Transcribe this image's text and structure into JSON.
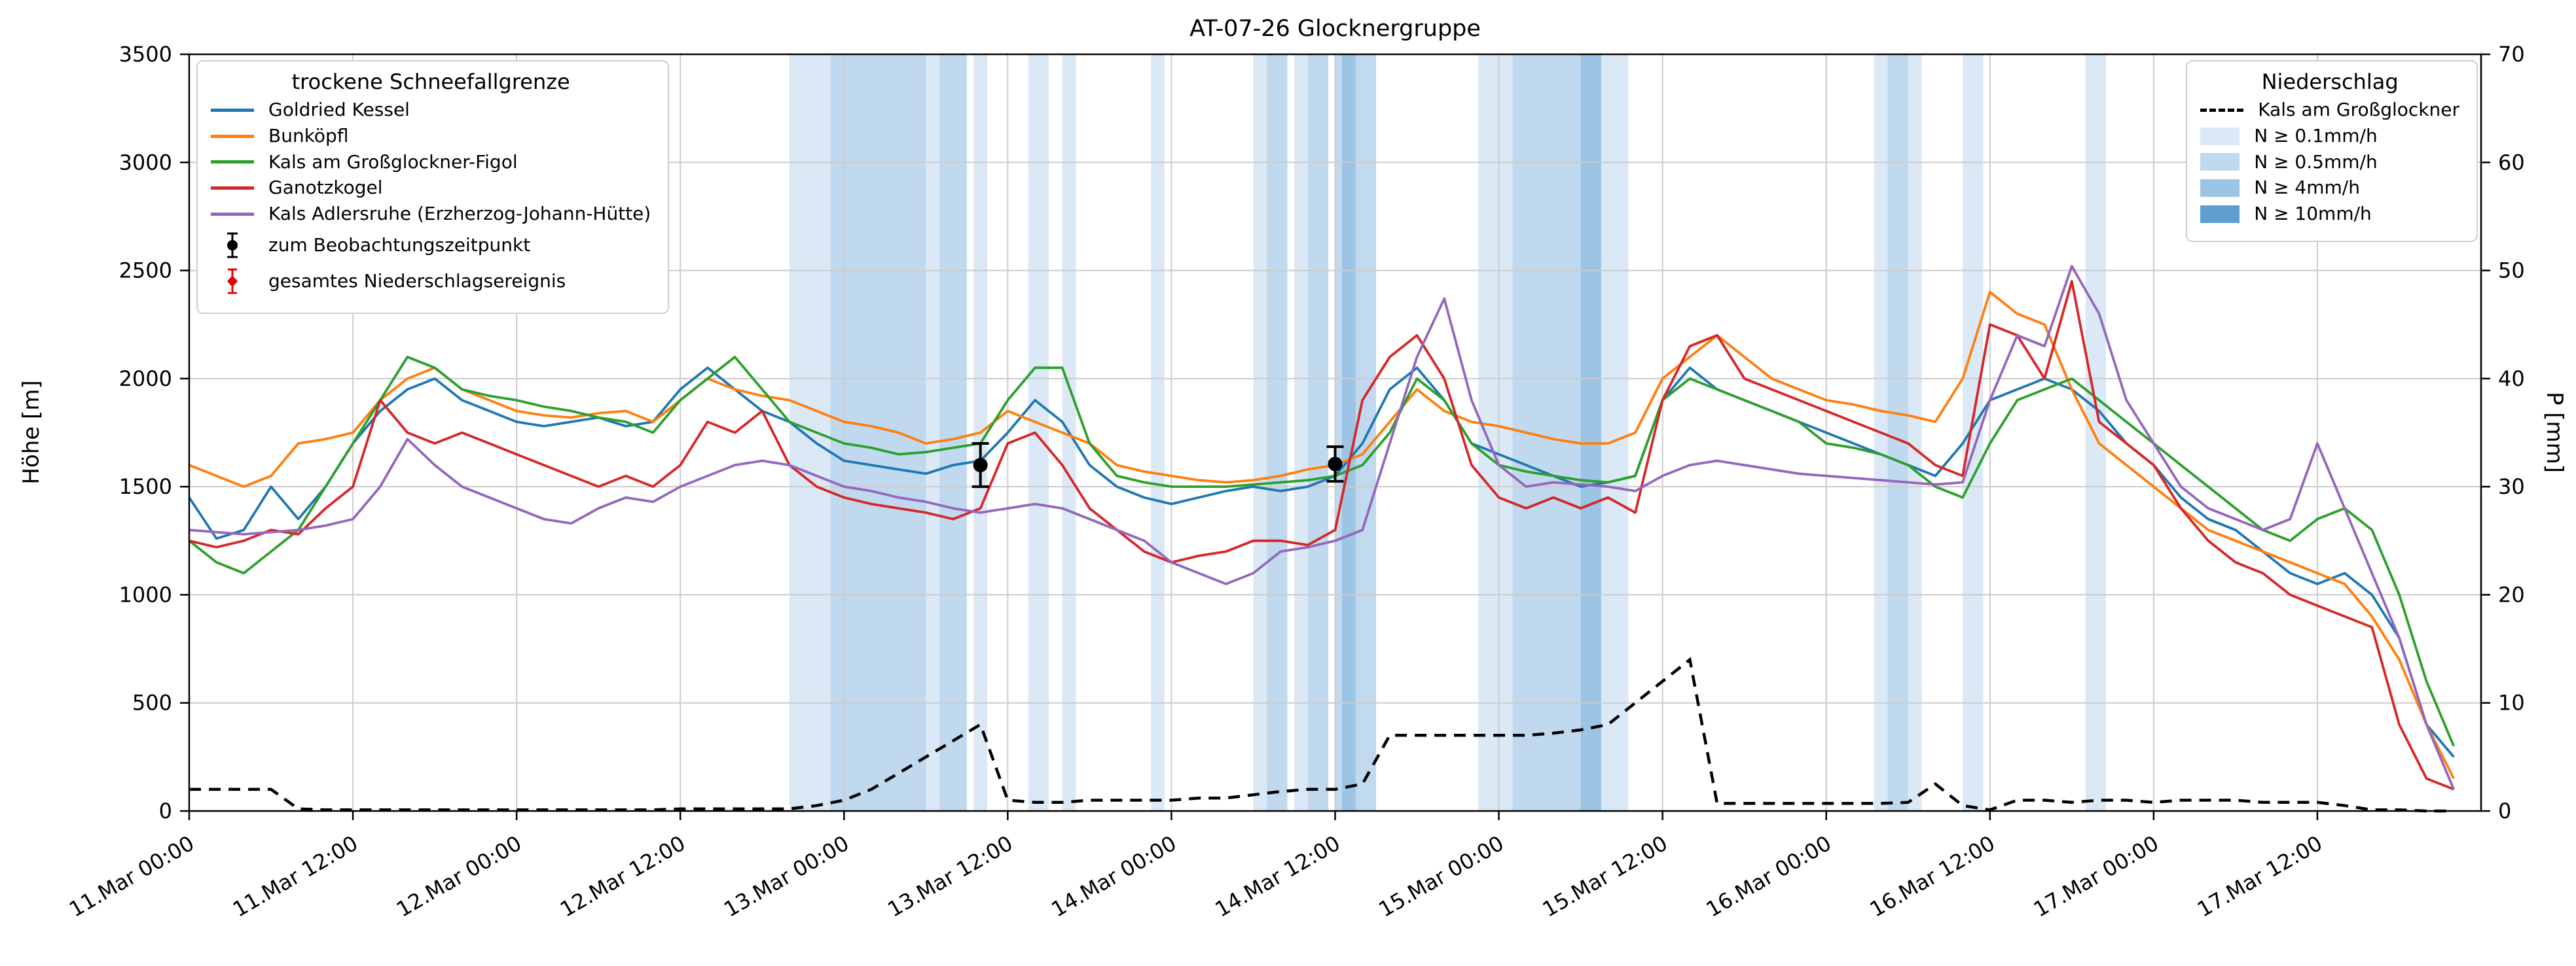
{
  "legend_snow": {
    "title": "trockene Schneefallgrenze"
  },
  "legend_precip": {
    "title": "Niederschlag"
  },
  "chart_data": {
    "type": "line",
    "title": "AT-07-26 Glocknergruppe",
    "ylabel_left": "Höhe [m]",
    "ylabel_right": "P [mm]",
    "ylim_left": [
      0,
      3500
    ],
    "ylim_right": [
      0,
      70
    ],
    "yticks_left": [
      0,
      500,
      1000,
      1500,
      2000,
      2500,
      3000,
      3500
    ],
    "yticks_right": [
      0,
      10,
      20,
      30,
      40,
      50,
      60,
      70
    ],
    "grid": true,
    "x_unit": "hours since 11.Mar 00:00",
    "x_max": 168,
    "x_ticks": [
      {
        "h": 0,
        "label": "11.Mar 00:00"
      },
      {
        "h": 12,
        "label": "11.Mar 12:00"
      },
      {
        "h": 24,
        "label": "12.Mar 00:00"
      },
      {
        "h": 36,
        "label": "12.Mar 12:00"
      },
      {
        "h": 48,
        "label": "13.Mar 00:00"
      },
      {
        "h": 60,
        "label": "13.Mar 12:00"
      },
      {
        "h": 72,
        "label": "14.Mar 00:00"
      },
      {
        "h": 84,
        "label": "14.Mar 12:00"
      },
      {
        "h": 96,
        "label": "15.Mar 00:00"
      },
      {
        "h": 108,
        "label": "15.Mar 12:00"
      },
      {
        "h": 120,
        "label": "16.Mar 00:00"
      },
      {
        "h": 132,
        "label": "16.Mar 12:00"
      },
      {
        "h": 144,
        "label": "17.Mar 00:00"
      },
      {
        "h": 156,
        "label": "17.Mar 12:00"
      }
    ],
    "x": [
      0,
      2,
      4,
      6,
      8,
      10,
      12,
      14,
      16,
      18,
      20,
      22,
      24,
      26,
      28,
      30,
      32,
      34,
      36,
      38,
      40,
      42,
      44,
      46,
      48,
      50,
      52,
      54,
      56,
      58,
      60,
      62,
      64,
      66,
      68,
      70,
      72,
      74,
      76,
      78,
      80,
      82,
      84,
      86,
      88,
      90,
      92,
      94,
      96,
      98,
      100,
      102,
      104,
      106,
      108,
      110,
      112,
      114,
      116,
      118,
      120,
      122,
      124,
      126,
      128,
      130,
      132,
      134,
      136,
      138,
      140,
      142,
      144,
      146,
      148,
      150,
      152,
      154,
      156,
      158,
      160,
      162,
      164,
      166
    ],
    "series": [
      {
        "name": "Goldried Kessel",
        "color": "#1f77b4",
        "values": [
          1450,
          1260,
          1300,
          1500,
          1350,
          1500,
          1700,
          1850,
          1950,
          2000,
          1900,
          1850,
          1800,
          1780,
          1800,
          1820,
          1780,
          1800,
          1950,
          2050,
          1950,
          1850,
          1800,
          1700,
          1620,
          1600,
          1580,
          1560,
          1600,
          1620,
          1750,
          1900,
          1800,
          1600,
          1500,
          1450,
          1420,
          1450,
          1480,
          1500,
          1480,
          1500,
          1550,
          1700,
          1950,
          2050,
          1900,
          1700,
          1650,
          1600,
          1550,
          1500,
          1520,
          1550,
          1900,
          2050,
          1950,
          1900,
          1850,
          1800,
          1750,
          1700,
          1650,
          1600,
          1550,
          1700,
          1900,
          1950,
          2000,
          1950,
          1850,
          1700,
          1600,
          1450,
          1350,
          1300,
          1200,
          1100,
          1050,
          1100,
          1000,
          800,
          400,
          250
        ]
      },
      {
        "name": "Bunköpfl",
        "color": "#ff7f0e",
        "values": [
          1600,
          1550,
          1500,
          1550,
          1700,
          1720,
          1750,
          1900,
          2000,
          2050,
          1950,
          1900,
          1850,
          1830,
          1820,
          1840,
          1850,
          1800,
          1900,
          2000,
          1950,
          1920,
          1900,
          1850,
          1800,
          1780,
          1750,
          1700,
          1720,
          1750,
          1850,
          1800,
          1750,
          1700,
          1600,
          1570,
          1550,
          1530,
          1520,
          1530,
          1550,
          1580,
          1600,
          1650,
          1800,
          1950,
          1850,
          1800,
          1780,
          1750,
          1720,
          1700,
          1700,
          1750,
          2000,
          2100,
          2200,
          2100,
          2000,
          1950,
          1900,
          1880,
          1850,
          1830,
          1800,
          2000,
          2400,
          2300,
          2250,
          1950,
          1700,
          1600,
          1500,
          1400,
          1300,
          1250,
          1200,
          1150,
          1100,
          1050,
          900,
          700,
          400,
          150
        ]
      },
      {
        "name": "Kals am Großglockner-Figol",
        "color": "#2ca02c",
        "values": [
          1250,
          1150,
          1100,
          1200,
          1300,
          1500,
          1700,
          1900,
          2100,
          2050,
          1950,
          1920,
          1900,
          1870,
          1850,
          1820,
          1800,
          1750,
          1900,
          2000,
          2100,
          1950,
          1800,
          1750,
          1700,
          1680,
          1650,
          1660,
          1680,
          1700,
          1900,
          2050,
          2050,
          1700,
          1550,
          1520,
          1500,
          1500,
          1500,
          1510,
          1520,
          1530,
          1550,
          1600,
          1750,
          2000,
          1900,
          1700,
          1600,
          1570,
          1550,
          1530,
          1520,
          1550,
          1900,
          2000,
          1950,
          1900,
          1850,
          1800,
          1700,
          1680,
          1650,
          1600,
          1500,
          1450,
          1700,
          1900,
          1950,
          2000,
          1900,
          1800,
          1700,
          1600,
          1500,
          1400,
          1300,
          1250,
          1350,
          1400,
          1300,
          1000,
          600,
          300
        ]
      },
      {
        "name": "Ganotzkogel",
        "color": "#d62728",
        "values": [
          1250,
          1220,
          1250,
          1300,
          1280,
          1400,
          1500,
          1900,
          1750,
          1700,
          1750,
          1700,
          1650,
          1600,
          1550,
          1500,
          1550,
          1500,
          1600,
          1800,
          1750,
          1850,
          1600,
          1500,
          1450,
          1420,
          1400,
          1380,
          1350,
          1400,
          1700,
          1750,
          1600,
          1400,
          1300,
          1200,
          1150,
          1180,
          1200,
          1250,
          1250,
          1230,
          1300,
          1900,
          2100,
          2200,
          2000,
          1600,
          1450,
          1400,
          1450,
          1400,
          1450,
          1380,
          1900,
          2150,
          2200,
          2000,
          1950,
          1900,
          1850,
          1800,
          1750,
          1700,
          1600,
          1550,
          2250,
          2200,
          2000,
          2450,
          1800,
          1700,
          1600,
          1400,
          1250,
          1150,
          1100,
          1000,
          950,
          900,
          850,
          400,
          150,
          100
        ]
      },
      {
        "name": "Kals Adlersruhe (Erzherzog-Johann-Hütte)",
        "color": "#9467bd",
        "values": [
          1300,
          1290,
          1280,
          1290,
          1300,
          1320,
          1350,
          1500,
          1720,
          1600,
          1500,
          1450,
          1400,
          1350,
          1330,
          1400,
          1450,
          1430,
          1500,
          1550,
          1600,
          1620,
          1600,
          1550,
          1500,
          1480,
          1450,
          1430,
          1400,
          1380,
          1400,
          1420,
          1400,
          1350,
          1300,
          1250,
          1150,
          1100,
          1050,
          1100,
          1200,
          1220,
          1250,
          1300,
          1700,
          2100,
          2370,
          1900,
          1600,
          1500,
          1520,
          1510,
          1500,
          1480,
          1550,
          1600,
          1620,
          1600,
          1580,
          1560,
          1550,
          1540,
          1530,
          1520,
          1510,
          1520,
          1900,
          2200,
          2150,
          2520,
          2300,
          1900,
          1700,
          1500,
          1400,
          1350,
          1300,
          1350,
          1700,
          1400,
          1100,
          800,
          400,
          100
        ]
      }
    ],
    "precip_line": {
      "name": "Kals am Großglockner",
      "color": "#000000",
      "style": "dashed",
      "values": [
        2,
        2,
        2,
        2,
        0.2,
        0.1,
        0.1,
        0.1,
        0.1,
        0.1,
        0.1,
        0.1,
        0.1,
        0.1,
        0.1,
        0.1,
        0.1,
        0.1,
        0.2,
        0.2,
        0.2,
        0.2,
        0.2,
        0.5,
        1,
        2,
        3.5,
        5,
        6.5,
        8,
        1,
        0.8,
        0.8,
        1,
        1,
        1,
        1,
        1.2,
        1.2,
        1.5,
        1.8,
        2,
        2,
        2.5,
        7,
        7,
        7,
        7,
        7,
        7,
        7.2,
        7.5,
        8,
        10,
        12,
        14,
        0.7,
        0.7,
        0.7,
        0.7,
        0.7,
        0.7,
        0.7,
        0.8,
        2.5,
        0.5,
        0.1,
        1,
        1,
        0.8,
        1,
        1,
        0.8,
        1,
        1,
        1,
        0.8,
        0.8,
        0.8,
        0.5,
        0.1,
        0.1,
        0,
        0
      ]
    },
    "precip_bands": {
      "levels": [
        {
          "label": "N ≥ 0.1mm/h",
          "color": "#dbe9f6"
        },
        {
          "label": "N ≥ 0.5mm/h",
          "color": "#c0d9ee"
        },
        {
          "label": "N ≥ 4mm/h",
          "color": "#9cc4e4"
        },
        {
          "label": "N ≥ 10mm/h",
          "color": "#5f9fd0"
        }
      ],
      "intervals": [
        [
          44,
          56,
          0
        ],
        [
          47,
          54,
          1
        ],
        [
          55,
          57,
          1
        ],
        [
          57.5,
          58.5,
          0
        ],
        [
          61.5,
          63,
          0
        ],
        [
          64,
          65,
          0
        ],
        [
          70.5,
          71.5,
          0
        ],
        [
          78,
          80.5,
          0
        ],
        [
          79,
          80.5,
          1
        ],
        [
          81,
          83.5,
          0
        ],
        [
          82,
          83.5,
          1
        ],
        [
          84,
          86,
          1
        ],
        [
          84.5,
          85.5,
          2
        ],
        [
          86,
          87,
          1
        ],
        [
          94.5,
          105.5,
          0
        ],
        [
          97,
          102,
          1
        ],
        [
          102,
          103.5,
          2
        ],
        [
          123.5,
          127,
          0
        ],
        [
          124.5,
          126,
          1
        ],
        [
          130,
          131.5,
          0
        ],
        [
          139,
          140.5,
          0
        ]
      ]
    },
    "markers": {
      "observation_label": "zum Beobachtungszeitpunkt",
      "observation_color": "#000000",
      "event_label": "gesamtes Niederschlagsereignis",
      "event_color": "#e60000",
      "observation": [
        {
          "h": 58,
          "hoehe": 1600,
          "err": 100
        },
        {
          "h": 84,
          "hoehe": 1605,
          "err": 80
        }
      ]
    }
  }
}
